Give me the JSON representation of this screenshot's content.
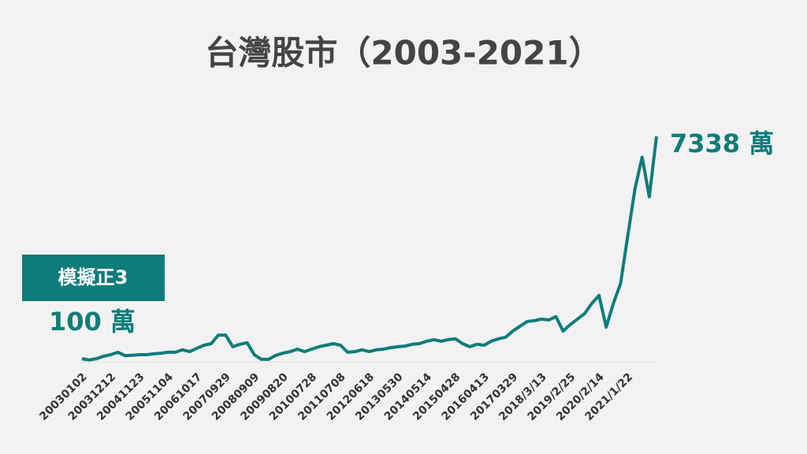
{
  "chart_data": {
    "type": "line",
    "title": "台灣股市（2003-2021）",
    "annotation": "模擬正3",
    "color": "#0e7c7b",
    "categories": [
      "20030102",
      null,
      null,
      null,
      "20031212",
      null,
      null,
      null,
      "20041123",
      null,
      null,
      null,
      "20051104",
      null,
      null,
      null,
      "20061017",
      null,
      null,
      null,
      "20070929",
      null,
      null,
      null,
      "20080909",
      null,
      null,
      null,
      "20090820",
      null,
      null,
      null,
      "20100728",
      null,
      null,
      null,
      "20110708",
      null,
      null,
      null,
      "20120618",
      null,
      null,
      null,
      "20130530",
      null,
      null,
      null,
      "20140514",
      null,
      null,
      null,
      "20150428",
      null,
      null,
      null,
      "20160413",
      null,
      null,
      null,
      "20170329",
      null,
      null,
      null,
      "2018/3/13",
      null,
      null,
      null,
      "2019/2/25",
      null,
      null,
      null,
      "2020/2/14",
      null,
      null,
      null,
      "2021/1/22",
      null,
      null,
      null,
      null
    ],
    "values": [
      100,
      60,
      100,
      180,
      230,
      310,
      200,
      210,
      230,
      230,
      260,
      280,
      310,
      310,
      390,
      330,
      440,
      540,
      590,
      870,
      870,
      490,
      570,
      620,
      230,
      80,
      80,
      210,
      280,
      330,
      410,
      330,
      410,
      490,
      540,
      590,
      540,
      310,
      330,
      390,
      330,
      390,
      410,
      460,
      490,
      510,
      570,
      590,
      670,
      720,
      670,
      720,
      750,
      590,
      490,
      570,
      540,
      670,
      750,
      800,
      1000,
      1160,
      1310,
      1340,
      1390,
      1360,
      1470,
      1000,
      1210,
      1390,
      1570,
      1900,
      2160,
      1130,
      1900,
      2540,
      4090,
      5630,
      6660,
      5370,
      7338
    ],
    "value_labels": [
      "100 萬",
      null,
      null,
      null,
      null,
      null,
      null,
      null,
      null,
      null,
      null,
      null,
      null,
      null,
      null,
      null,
      null,
      null,
      null,
      null,
      null,
      null,
      null,
      null,
      null,
      null,
      null,
      null,
      null,
      null,
      null,
      null,
      null,
      null,
      null,
      null,
      null,
      null,
      null,
      null,
      null,
      null,
      null,
      null,
      null,
      null,
      null,
      null,
      null,
      null,
      null,
      null,
      null,
      null,
      null,
      null,
      null,
      null,
      null,
      null,
      null,
      null,
      null,
      null,
      null,
      null,
      null,
      null,
      null,
      null,
      null,
      null,
      null,
      null,
      null,
      null,
      null,
      null,
      null,
      null,
      "7338 萬"
    ]
  }
}
